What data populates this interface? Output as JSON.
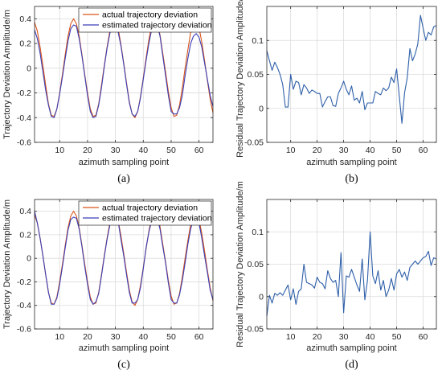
{
  "chart_data": [
    {
      "type": "line",
      "panel_label": "(a)",
      "xlabel": "azimuth sampling point",
      "ylabel": "Trajectory Deviation Amplitude/m",
      "xlim": [
        1,
        65
      ],
      "ylim": [
        -0.6,
        0.5
      ],
      "x_ticks": [
        10,
        20,
        30,
        40,
        50,
        60
      ],
      "y_ticks": [
        -0.6,
        -0.4,
        -0.2,
        0,
        0.2,
        0.4
      ],
      "grid": true,
      "legend_position": "top-right",
      "x": [
        1,
        2,
        3,
        4,
        5,
        6,
        7,
        8,
        9,
        10,
        11,
        12,
        13,
        14,
        15,
        16,
        17,
        18,
        19,
        20,
        21,
        22,
        23,
        24,
        25,
        26,
        27,
        28,
        29,
        30,
        31,
        32,
        33,
        34,
        35,
        36,
        37,
        38,
        39,
        40,
        41,
        42,
        43,
        44,
        45,
        46,
        47,
        48,
        49,
        50,
        51,
        52,
        53,
        54,
        55,
        56,
        57,
        58,
        59,
        60,
        61,
        62,
        63,
        64,
        65
      ],
      "series": [
        {
          "name": "actual trajectory deviation",
          "color": "#D95319",
          "values": [
            0.37,
            0.3,
            0.17,
            0.02,
            -0.14,
            -0.29,
            -0.38,
            -0.39,
            -0.33,
            -0.2,
            -0.05,
            0.11,
            0.26,
            0.36,
            0.4,
            0.36,
            0.26,
            0.11,
            -0.05,
            -0.2,
            -0.33,
            -0.39,
            -0.38,
            -0.29,
            -0.14,
            0.02,
            0.17,
            0.3,
            0.38,
            0.39,
            0.32,
            0.19,
            0.04,
            -0.12,
            -0.27,
            -0.37,
            -0.4,
            -0.35,
            -0.23,
            -0.08,
            0.08,
            0.23,
            0.35,
            0.4,
            0.37,
            0.27,
            0.12,
            -0.03,
            -0.19,
            -0.32,
            -0.39,
            -0.38,
            -0.3,
            -0.16,
            0,
            0.15,
            0.29,
            0.38,
            0.39,
            0.33,
            0.21,
            0.06,
            -0.1,
            -0.25,
            -0.36
          ]
        },
        {
          "name": "estimated trajectory deviation",
          "color": "#3B3FB6",
          "values": [
            0.31,
            0.24,
            0.12,
            -0.03,
            -0.18,
            -0.3,
            -0.39,
            -0.4,
            -0.33,
            -0.21,
            -0.07,
            0.08,
            0.22,
            0.32,
            0.35,
            0.34,
            0.24,
            0.1,
            -0.06,
            -0.22,
            -0.35,
            -0.4,
            -0.39,
            -0.3,
            -0.16,
            0.01,
            0.16,
            0.28,
            0.36,
            0.36,
            0.29,
            0.18,
            0.03,
            -0.13,
            -0.28,
            -0.37,
            -0.39,
            -0.35,
            -0.24,
            -0.09,
            0.06,
            0.2,
            0.31,
            0.36,
            0.35,
            0.26,
            0.1,
            -0.06,
            -0.22,
            -0.35,
            -0.37,
            -0.37,
            -0.32,
            -0.22,
            -0.06,
            0.08,
            0.2,
            0.26,
            0.28,
            0.25,
            0.17,
            0.04,
            -0.09,
            -0.22,
            -0.31
          ]
        }
      ]
    },
    {
      "type": "line",
      "panel_label": "(b)",
      "xlabel": "azimuth sampling point",
      "ylabel": "Residual Trajectory Deviation Amplitude/m",
      "xlim": [
        1,
        65
      ],
      "ylim": [
        -0.05,
        0.15
      ],
      "x_ticks": [
        10,
        20,
        30,
        40,
        50,
        60
      ],
      "y_ticks": [
        -0.05,
        0,
        0.05,
        0.1
      ],
      "grid": true,
      "x": [
        1,
        2,
        3,
        4,
        5,
        6,
        7,
        8,
        9,
        10,
        11,
        12,
        13,
        14,
        15,
        16,
        17,
        18,
        19,
        20,
        21,
        22,
        23,
        24,
        25,
        26,
        27,
        28,
        29,
        30,
        31,
        32,
        33,
        34,
        35,
        36,
        37,
        38,
        39,
        40,
        41,
        42,
        43,
        44,
        45,
        46,
        47,
        48,
        49,
        50,
        51,
        52,
        53,
        54,
        55,
        56,
        57,
        58,
        59,
        60,
        61,
        62,
        63,
        64,
        65
      ],
      "series": [
        {
          "name": "",
          "color": "#2E5FA8",
          "values": [
            0.085,
            0.07,
            0.056,
            0.068,
            0.06,
            0.05,
            0.035,
            0.002,
            0.002,
            0.05,
            0.028,
            0.04,
            0.038,
            0.02,
            0.035,
            0.03,
            0.022,
            0.027,
            0.025,
            0.022,
            0.022,
            0.002,
            0.01,
            0.017,
            0.017,
            0.004,
            0.003,
            0.022,
            0.03,
            0.04,
            0.028,
            0.02,
            0.033,
            0.012,
            0.015,
            0.008,
            0.025,
            -0.002,
            0.008,
            0.008,
            0.008,
            0.025,
            0.022,
            0.02,
            0.03,
            0.026,
            0.03,
            0.046,
            0.038,
            0.058,
            0.018,
            -0.022,
            0.023,
            0.045,
            0.088,
            0.07,
            0.08,
            0.095,
            0.137,
            0.118,
            0.1,
            0.112,
            0.108,
            0.12,
            0.122
          ]
        }
      ]
    },
    {
      "type": "line",
      "panel_label": "(c)",
      "xlabel": "azimuth sampling point",
      "ylabel": "Trajectory Deviation Amplitude/m",
      "xlim": [
        1,
        65
      ],
      "ylim": [
        -0.6,
        0.5
      ],
      "x_ticks": [
        10,
        20,
        30,
        40,
        50,
        60
      ],
      "y_ticks": [
        -0.6,
        -0.4,
        -0.2,
        0,
        0.2,
        0.4
      ],
      "grid": true,
      "legend_position": "top-right",
      "x": [
        1,
        2,
        3,
        4,
        5,
        6,
        7,
        8,
        9,
        10,
        11,
        12,
        13,
        14,
        15,
        16,
        17,
        18,
        19,
        20,
        21,
        22,
        23,
        24,
        25,
        26,
        27,
        28,
        29,
        30,
        31,
        32,
        33,
        34,
        35,
        36,
        37,
        38,
        39,
        40,
        41,
        42,
        43,
        44,
        45,
        46,
        47,
        48,
        49,
        50,
        51,
        52,
        53,
        54,
        55,
        56,
        57,
        58,
        59,
        60,
        61,
        62,
        63,
        64,
        65
      ],
      "series": [
        {
          "name": "actual trajectory deviation",
          "color": "#D95319",
          "values": [
            0.37,
            0.3,
            0.17,
            0.02,
            -0.14,
            -0.29,
            -0.38,
            -0.39,
            -0.33,
            -0.2,
            -0.05,
            0.11,
            0.26,
            0.36,
            0.4,
            0.36,
            0.26,
            0.11,
            -0.05,
            -0.2,
            -0.33,
            -0.39,
            -0.38,
            -0.29,
            -0.14,
            0.02,
            0.17,
            0.3,
            0.38,
            0.39,
            0.32,
            0.19,
            0.04,
            -0.12,
            -0.27,
            -0.37,
            -0.4,
            -0.35,
            -0.23,
            -0.08,
            0.08,
            0.23,
            0.35,
            0.4,
            0.37,
            0.27,
            0.12,
            -0.03,
            -0.19,
            -0.32,
            -0.39,
            -0.38,
            -0.3,
            -0.16,
            0,
            0.15,
            0.29,
            0.38,
            0.39,
            0.33,
            0.21,
            0.06,
            -0.1,
            -0.25,
            -0.36
          ]
        },
        {
          "name": "estimated trajectory deviation",
          "color": "#3B3FB6",
          "values": [
            0.4,
            0.3,
            0.17,
            0.02,
            -0.14,
            -0.29,
            -0.39,
            -0.39,
            -0.34,
            -0.22,
            -0.07,
            0.09,
            0.24,
            0.33,
            0.35,
            0.34,
            0.25,
            0.1,
            -0.07,
            -0.22,
            -0.35,
            -0.39,
            -0.37,
            -0.3,
            -0.15,
            0.01,
            0.16,
            0.28,
            0.39,
            0.35,
            0.31,
            0.16,
            0.02,
            -0.14,
            -0.29,
            -0.38,
            -0.38,
            -0.35,
            -0.25,
            -0.09,
            0.09,
            0.22,
            0.32,
            0.38,
            0.34,
            0.25,
            0.1,
            -0.04,
            -0.21,
            -0.35,
            -0.38,
            -0.38,
            -0.31,
            -0.19,
            -0.04,
            0.12,
            0.25,
            0.33,
            0.35,
            0.3,
            0.17,
            0.02,
            -0.12,
            -0.27,
            -0.35
          ]
        }
      ]
    },
    {
      "type": "line",
      "panel_label": "(d)",
      "xlabel": "azimuth sampling point",
      "ylabel": "Residual Trajectory Deviation Amplitude/m",
      "xlim": [
        1,
        65
      ],
      "ylim": [
        -0.05,
        0.15
      ],
      "x_ticks": [
        10,
        20,
        30,
        40,
        50,
        60
      ],
      "y_ticks": [
        -0.05,
        0,
        0.05,
        0.1
      ],
      "grid": true,
      "x": [
        1,
        2,
        3,
        4,
        5,
        6,
        7,
        8,
        9,
        10,
        11,
        12,
        13,
        14,
        15,
        16,
        17,
        18,
        19,
        20,
        21,
        22,
        23,
        24,
        25,
        26,
        27,
        28,
        29,
        30,
        31,
        32,
        33,
        34,
        35,
        36,
        37,
        38,
        39,
        40,
        41,
        42,
        43,
        44,
        45,
        46,
        47,
        48,
        49,
        50,
        51,
        52,
        53,
        54,
        55,
        56,
        57,
        58,
        59,
        60,
        61,
        62,
        63,
        64,
        65
      ],
      "series": [
        {
          "name": "",
          "color": "#2E5FA8",
          "values": [
            -0.03,
            0.002,
            -0.01,
            0.005,
            0.002,
            0.006,
            0.002,
            0.01,
            0.018,
            -0.005,
            0.012,
            -0.012,
            0.008,
            0.012,
            0.05,
            0.022,
            0.02,
            0.018,
            0.013,
            0.03,
            0.022,
            0.02,
            0.012,
            0.04,
            0.028,
            0.022,
            0.025,
            0.0,
            0.068,
            -0.025,
            0.032,
            0.03,
            0.042,
            0.03,
            0.018,
            0.008,
            0.058,
            -0.005,
            0.025,
            0.1,
            0.032,
            0.02,
            0.04,
            0.01,
            0.025,
            0.0,
            0.01,
            0.028,
            0.01,
            0.035,
            0.042,
            0.03,
            0.038,
            0.025,
            0.045,
            0.05,
            0.055,
            0.05,
            0.055,
            0.06,
            0.062,
            0.07,
            0.048,
            0.06,
            0.058
          ]
        }
      ]
    }
  ]
}
